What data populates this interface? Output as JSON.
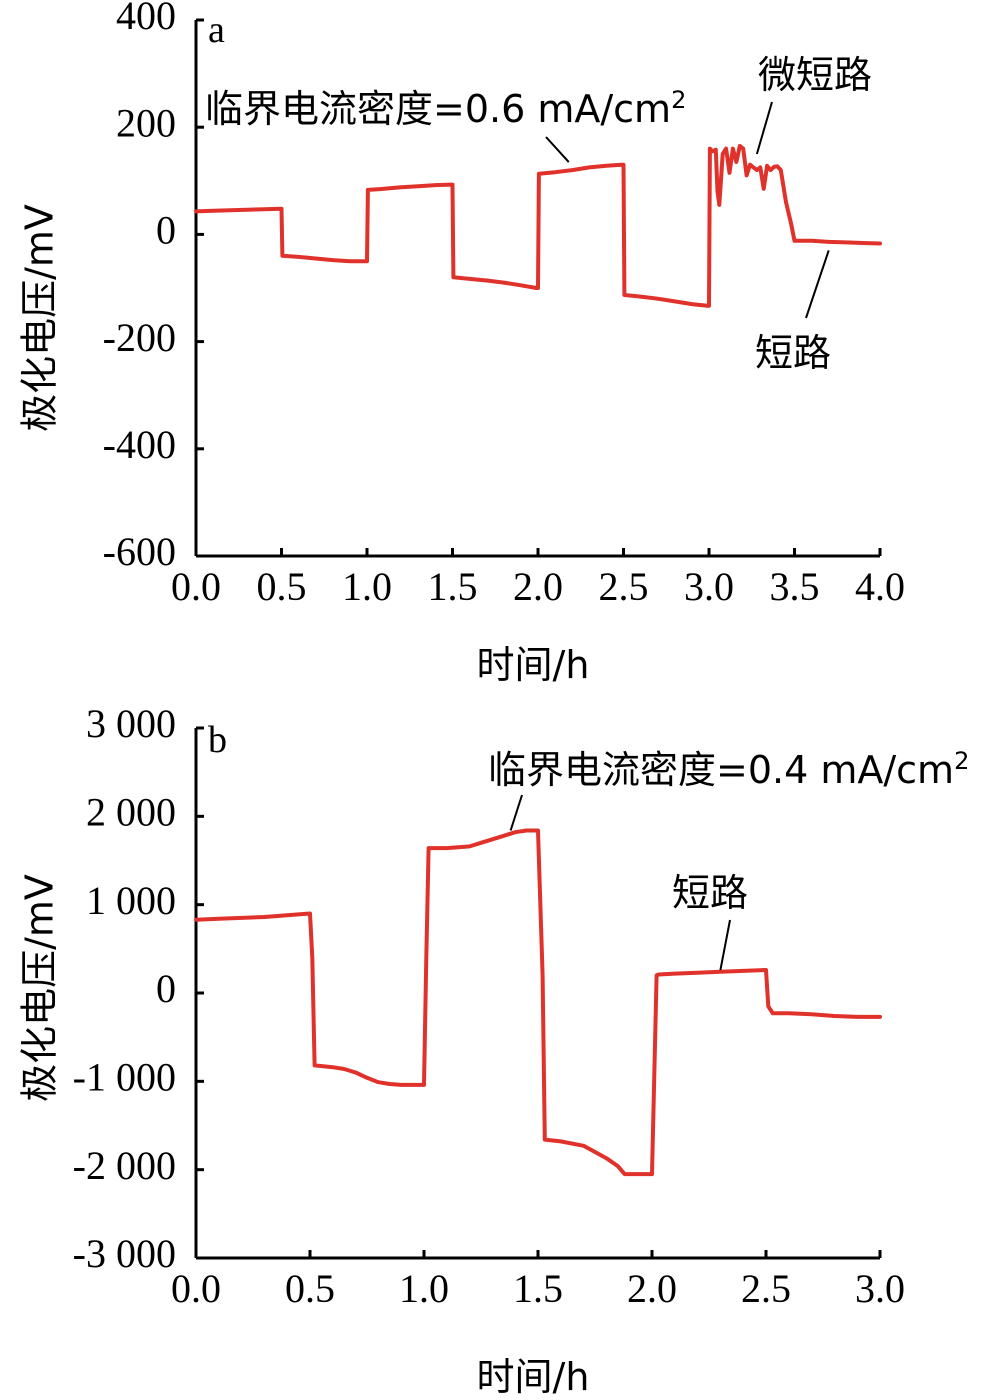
{
  "colors": {
    "series": "#e0312b",
    "axis": "#000000"
  },
  "chart_data": [
    {
      "panel_label": "a",
      "type": "line",
      "xlabel": "时间/h",
      "ylabel": "极化电压/mV",
      "xlim": [
        0,
        4
      ],
      "ylim": [
        -600,
        400
      ],
      "x_ticks": [
        "0.0",
        "0.5",
        "1.0",
        "1.5",
        "2.0",
        "2.5",
        "3.0",
        "3.5",
        "4.0"
      ],
      "y_ticks": [
        "400",
        "200",
        "0",
        "-200",
        "-400",
        "-600"
      ],
      "grid": false,
      "annotations": [
        {
          "text": "临界电流密度=0.6 mA/cm",
          "sup": "2",
          "x": 2.18,
          "y": 135
        },
        {
          "text": "微短路",
          "x": 3.28,
          "y": 150
        },
        {
          "text": "短路",
          "x": 3.7,
          "y": -30
        }
      ],
      "series": [
        {
          "x": [
            0,
            0.1,
            0.2,
            0.3,
            0.4,
            0.5,
            0.505,
            0.6,
            0.7,
            0.8,
            0.9,
            0.99,
            1.0,
            1.005,
            1.1,
            1.2,
            1.3,
            1.4,
            1.49,
            1.5,
            1.505,
            1.6,
            1.7,
            1.8,
            1.9,
            1.99,
            2.0,
            2.005,
            2.1,
            2.2,
            2.3,
            2.4,
            2.49,
            2.5,
            2.505,
            2.6,
            2.7,
            2.8,
            2.9,
            2.99,
            3.0,
            3.005,
            3.02,
            3.04,
            3.05,
            3.06,
            3.08,
            3.1,
            3.12,
            3.14,
            3.16,
            3.18,
            3.2,
            3.22,
            3.24,
            3.26,
            3.28,
            3.3,
            3.32,
            3.34,
            3.36,
            3.38,
            3.4,
            3.42,
            3.45,
            3.48,
            3.5,
            3.6,
            3.7,
            3.8,
            3.9,
            4.0
          ],
          "y": [
            43,
            44,
            45,
            46,
            47,
            48,
            -40,
            -42,
            -45,
            -48,
            -50,
            -50,
            -50,
            83,
            85,
            88,
            90,
            92,
            93,
            93,
            -80,
            -83,
            -86,
            -90,
            -95,
            -100,
            -100,
            113,
            116,
            120,
            125,
            128,
            130,
            130,
            -113,
            -116,
            -120,
            -125,
            -130,
            -133,
            -133,
            160,
            155,
            158,
            80,
            55,
            150,
            160,
            115,
            160,
            135,
            165,
            160,
            110,
            130,
            125,
            120,
            125,
            85,
            128,
            120,
            126,
            127,
            120,
            60,
            20,
            -12,
            -12,
            -14,
            -15,
            -16,
            -17
          ]
        }
      ]
    },
    {
      "panel_label": "b",
      "type": "line",
      "xlabel": "时间/h",
      "ylabel": "极化电压/mV",
      "xlim": [
        0,
        3
      ],
      "ylim": [
        -3000,
        3000
      ],
      "x_ticks": [
        "0.0",
        "0.5",
        "1.0",
        "1.5",
        "2.0",
        "2.5",
        "3.0"
      ],
      "y_ticks": [
        "3 000",
        "2 000",
        "1 000",
        "0",
        "-1 000",
        "-2 000",
        "-3 000"
      ],
      "grid": false,
      "annotations": [
        {
          "text": "临界电流密度=0.4 mA/cm",
          "sup": "2",
          "x": 1.38,
          "y": 1840
        },
        {
          "text": "短路",
          "x": 2.3,
          "y": 260
        }
      ],
      "series": [
        {
          "x": [
            0,
            0.1,
            0.2,
            0.3,
            0.4,
            0.5,
            0.51,
            0.52,
            0.6,
            0.65,
            0.7,
            0.75,
            0.8,
            0.85,
            0.9,
            0.95,
            0.99,
            1.0,
            1.01,
            1.02,
            1.1,
            1.2,
            1.25,
            1.3,
            1.35,
            1.4,
            1.45,
            1.5,
            1.52,
            1.53,
            1.6,
            1.7,
            1.75,
            1.8,
            1.85,
            1.88,
            1.95,
            1.99,
            2.0,
            2.02,
            2.03,
            2.1,
            2.2,
            2.3,
            2.4,
            2.5,
            2.51,
            2.53,
            2.6,
            2.7,
            2.8,
            2.9,
            3.0
          ],
          "y": [
            830,
            840,
            850,
            860,
            880,
            900,
            400,
            -820,
            -840,
            -860,
            -900,
            -960,
            -1010,
            -1030,
            -1040,
            -1040,
            -1040,
            -1040,
            400,
            1640,
            1640,
            1660,
            1700,
            1740,
            1780,
            1820,
            1840,
            1840,
            200,
            -1660,
            -1680,
            -1730,
            -1800,
            -1870,
            -1960,
            -2050,
            -2050,
            -2050,
            -2050,
            200,
            210,
            220,
            230,
            240,
            250,
            260,
            -150,
            -230,
            -230,
            -240,
            -260,
            -270,
            -270
          ]
        }
      ]
    }
  ]
}
